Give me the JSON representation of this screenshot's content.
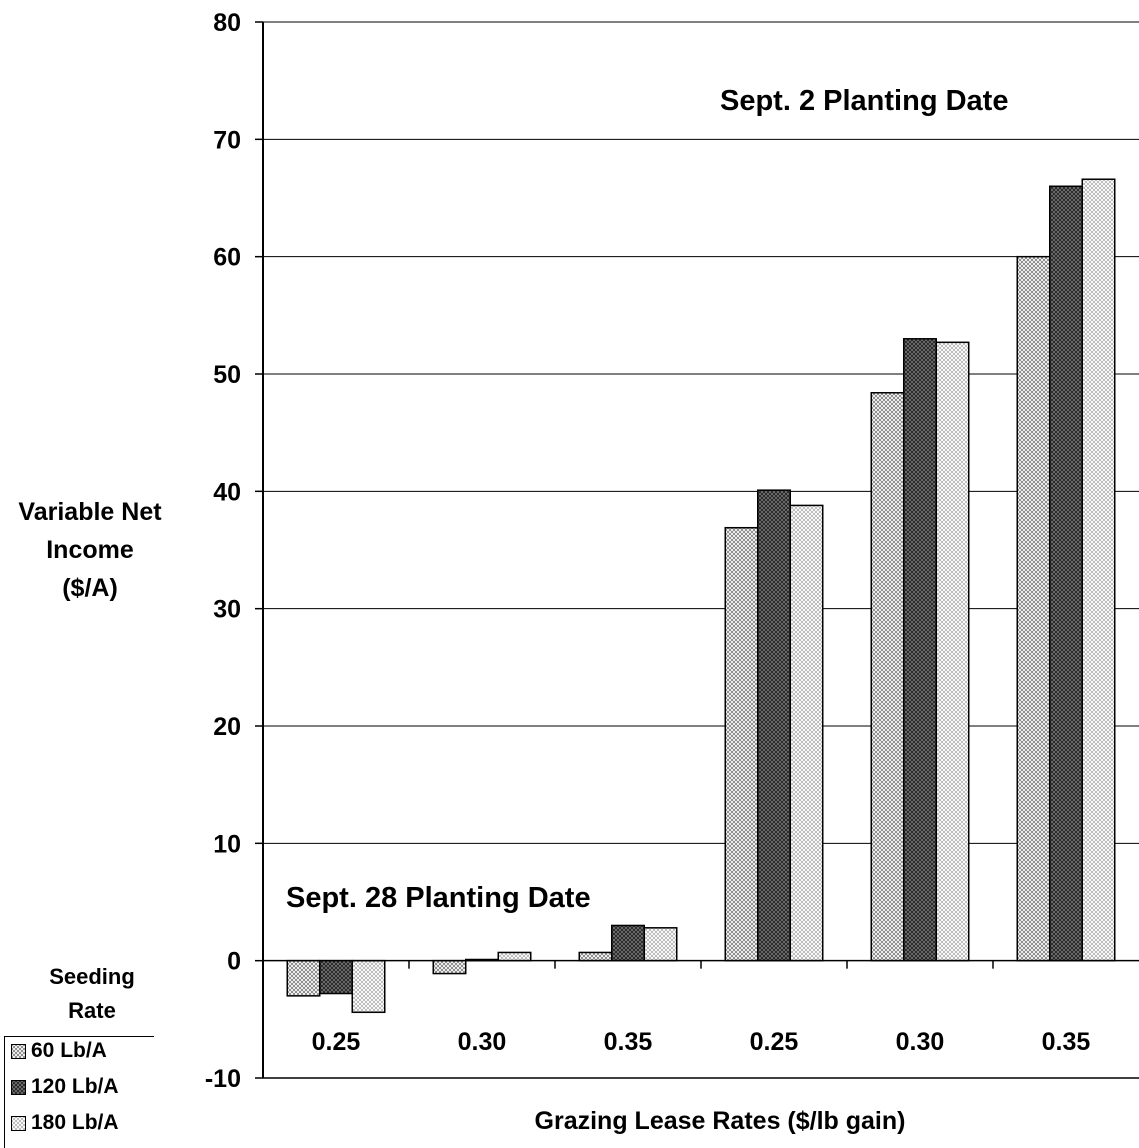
{
  "chart_data": {
    "type": "bar",
    "categories": [
      "0.25",
      "0.30",
      "0.35",
      "0.25",
      "0.30",
      "0.35"
    ],
    "series": [
      {
        "name": "60 Lb/A",
        "values": [
          -3.0,
          -1.1,
          0.7,
          36.9,
          48.4,
          60.0
        ]
      },
      {
        "name": "120 Lb/A",
        "values": [
          -2.8,
          0.1,
          3.0,
          40.1,
          53.0,
          66.0
        ]
      },
      {
        "name": "180 Lb/A",
        "values": [
          -4.4,
          0.7,
          2.8,
          38.8,
          52.7,
          66.6
        ]
      }
    ],
    "ylabel": "Variable Net Income ($/A)",
    "ylabel_lines": [
      "Variable Net",
      "Income",
      "($/A)"
    ],
    "xlabel": "Grazing Lease Rates ($/lb gain)",
    "ylim": [
      -10,
      80
    ],
    "yticks": [
      "80",
      "70",
      "60",
      "50",
      "40",
      "30",
      "20",
      "10",
      "0",
      "-10"
    ],
    "grid": true,
    "annotations": [
      "Sept. 2 Planting Date",
      "Sept. 28 Planting Date"
    ],
    "legend_title_lines": [
      "Seeding",
      "Rate"
    ],
    "legend_position": "bottom-left",
    "series_colors": [
      "#dcdcdc",
      "#8a8a8a",
      "#e6e6e6"
    ]
  }
}
